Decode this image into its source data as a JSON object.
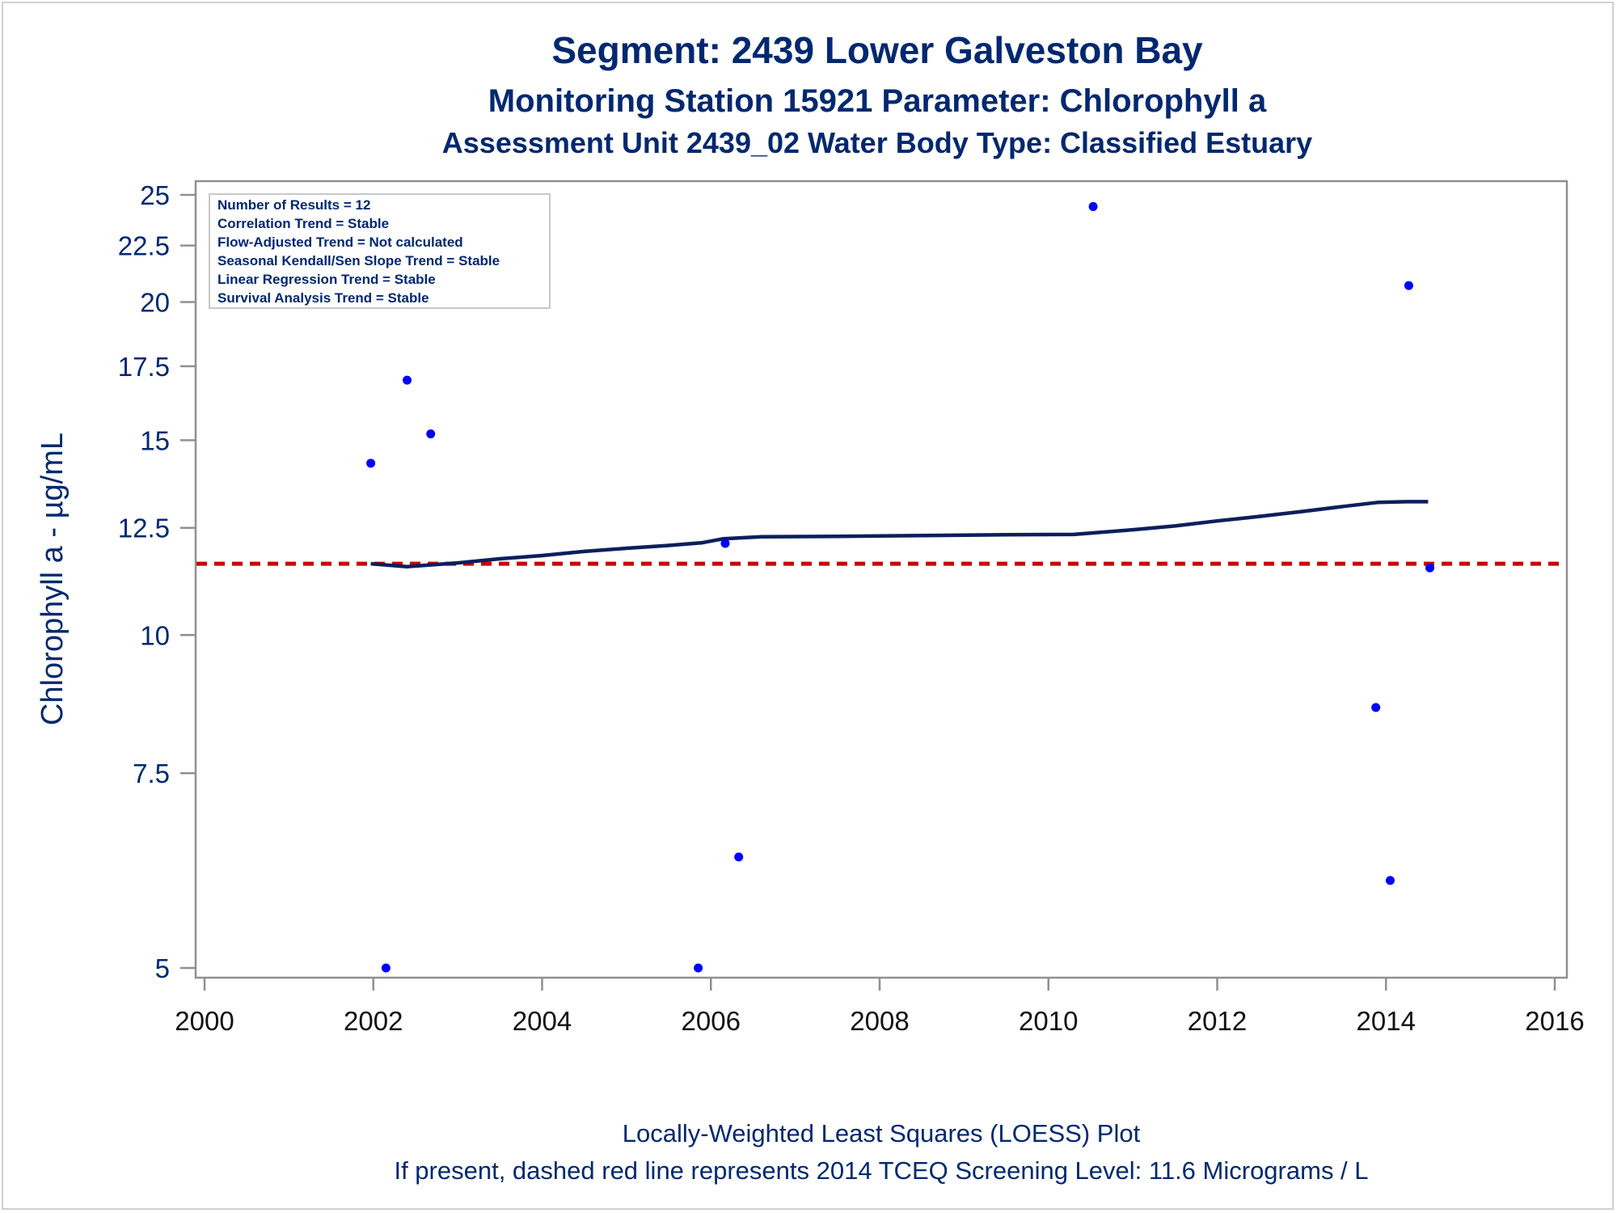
{
  "titles": {
    "line1": "Segment: 2439  Lower Galveston Bay",
    "line2": "Monitoring Station 15921 Parameter: Chlorophyll a",
    "line3": "Assessment Unit 2439_02   Water Body Type: Classified Estuary"
  },
  "info_box": [
    "Number of Results = 12",
    "Correlation Trend = Stable",
    "Flow-Adjusted Trend = Not calculated",
    "Seasonal Kendall/Sen Slope Trend = Stable",
    "Linear Regression Trend = Stable",
    "Survival Analysis Trend = Stable"
  ],
  "footnotes": {
    "line1": "Locally-Weighted Least Squares (LOESS) Plot",
    "line2": "If present, dashed red line represents 2014 TCEQ Screening Level: 11.6 Micrograms / L"
  },
  "colors": {
    "title": "#002870",
    "points": "#0000ff",
    "loess": "#0b1f5c",
    "reference": "#cc0000",
    "axis": "#909090",
    "tick_text": "#002870"
  },
  "chart_data": {
    "type": "scatter",
    "ylabel": "Chlorophyll a -  µg/mL",
    "y_scale": "log",
    "xlim": [
      2000,
      2016
    ],
    "ylim": [
      5,
      25
    ],
    "x_ticks": [
      2000,
      2002,
      2004,
      2006,
      2008,
      2010,
      2012,
      2014,
      2016
    ],
    "y_ticks": [
      5,
      7.5,
      10,
      12.5,
      15,
      17.5,
      20,
      22.5,
      25
    ],
    "grid": false,
    "points": [
      {
        "x": 2001.97,
        "y": 14.3
      },
      {
        "x": 2002.15,
        "y": 5.0
      },
      {
        "x": 2002.4,
        "y": 17.0
      },
      {
        "x": 2002.68,
        "y": 15.2
      },
      {
        "x": 2005.85,
        "y": 5.0
      },
      {
        "x": 2006.17,
        "y": 12.1
      },
      {
        "x": 2006.33,
        "y": 6.3
      },
      {
        "x": 2010.53,
        "y": 24.4
      },
      {
        "x": 2013.88,
        "y": 8.6
      },
      {
        "x": 2014.05,
        "y": 6.0
      },
      {
        "x": 2014.27,
        "y": 20.7
      },
      {
        "x": 2014.52,
        "y": 11.5
      }
    ],
    "loess": [
      {
        "x": 2001.97,
        "y": 11.6
      },
      {
        "x": 2002.4,
        "y": 11.53
      },
      {
        "x": 2003.0,
        "y": 11.62
      },
      {
        "x": 2003.5,
        "y": 11.72
      },
      {
        "x": 2004.0,
        "y": 11.8
      },
      {
        "x": 2004.5,
        "y": 11.9
      },
      {
        "x": 2005.0,
        "y": 11.98
      },
      {
        "x": 2005.5,
        "y": 12.05
      },
      {
        "x": 2005.9,
        "y": 12.12
      },
      {
        "x": 2006.15,
        "y": 12.22
      },
      {
        "x": 2006.6,
        "y": 12.27
      },
      {
        "x": 2007.5,
        "y": 12.28
      },
      {
        "x": 2008.5,
        "y": 12.3
      },
      {
        "x": 2009.5,
        "y": 12.32
      },
      {
        "x": 2010.3,
        "y": 12.33
      },
      {
        "x": 2011.0,
        "y": 12.45
      },
      {
        "x": 2011.5,
        "y": 12.55
      },
      {
        "x": 2012.0,
        "y": 12.68
      },
      {
        "x": 2012.5,
        "y": 12.8
      },
      {
        "x": 2013.0,
        "y": 12.93
      },
      {
        "x": 2013.5,
        "y": 13.07
      },
      {
        "x": 2013.9,
        "y": 13.18
      },
      {
        "x": 2014.25,
        "y": 13.2
      },
      {
        "x": 2014.5,
        "y": 13.2
      }
    ],
    "reference_line": {
      "y": 11.6,
      "style": "dashed"
    }
  }
}
